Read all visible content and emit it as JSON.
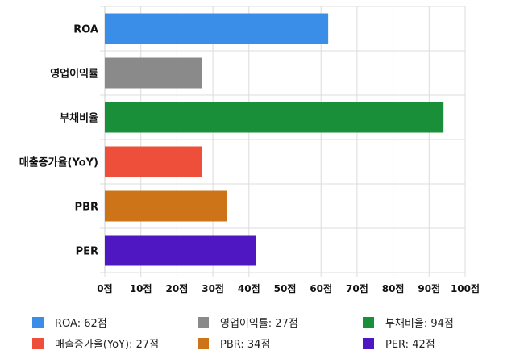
{
  "chart_data": {
    "type": "bar",
    "orientation": "horizontal",
    "categories": [
      "ROA",
      "영업이익률",
      "부채비율",
      "매출증가율(YoY)",
      "PBR",
      "PER"
    ],
    "values": [
      62,
      27,
      94,
      27,
      34,
      42
    ],
    "colors": [
      "#3b8ee8",
      "#8a8a8a",
      "#1a8f3a",
      "#ee4f3a",
      "#cc7417",
      "#4e17c2"
    ],
    "xlim": [
      0,
      100
    ],
    "x_ticks": [
      "0점",
      "10점",
      "20점",
      "30점",
      "40점",
      "50점",
      "60점",
      "70점",
      "80점",
      "90점",
      "100점"
    ],
    "grid": true,
    "legend": {
      "placement": "bottom",
      "entries": [
        "ROA: 62점",
        "영업이익률: 27점",
        "부채비율: 94점",
        "매출증가율(YoY): 27점",
        "PBR: 34점",
        "PER: 42점"
      ]
    }
  }
}
